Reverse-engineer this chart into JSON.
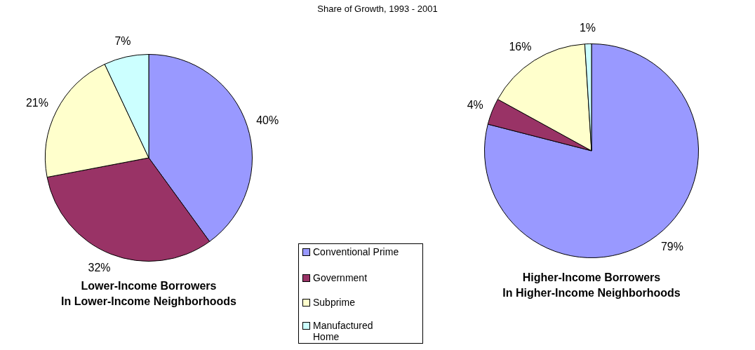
{
  "chart_data": [
    {
      "type": "pie",
      "subtitle": "Share of Growth, 1993 - 2001",
      "title": "Lower-Income Borrowers\nIn Lower-Income Neighborhoods",
      "categories": [
        "Conventional Prime",
        "Government",
        "Subprime",
        "Manufactured Home"
      ],
      "values": [
        40,
        32,
        21,
        7
      ],
      "colors": [
        "#9999ff",
        "#993366",
        "#ffffcc",
        "#ccffff"
      ],
      "value_labels": [
        "40%",
        "32%",
        "21%",
        "7%"
      ],
      "legend": "bottom right"
    },
    {
      "type": "pie",
      "title": "Higher-Income Borrowers\nIn Higher-Income Neighborhoods",
      "categories": [
        null,
        null,
        null,
        null
      ],
      "values": [
        79,
        4,
        16,
        1
      ],
      "colors": [
        "#9999ff",
        "#993366",
        "#ffffcc",
        "#ccffff"
      ],
      "value_labels": [
        "79%",
        "4%",
        "16%",
        "1%"
      ]
    }
  ]
}
